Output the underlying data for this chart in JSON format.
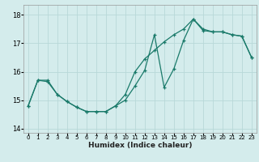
{
  "xlabel": "Humidex (Indice chaleur)",
  "bg_color": "#d4ecec",
  "grid_color": "#b8d8d8",
  "line_color": "#1a7a6a",
  "xlim": [
    -0.5,
    23.5
  ],
  "ylim": [
    13.85,
    18.35
  ],
  "yticks": [
    14,
    15,
    16,
    17,
    18
  ],
  "xticks": [
    0,
    1,
    2,
    3,
    4,
    5,
    6,
    7,
    8,
    9,
    10,
    11,
    12,
    13,
    14,
    15,
    16,
    17,
    18,
    19,
    20,
    21,
    22,
    23
  ],
  "line1_x": [
    0,
    1,
    2,
    3,
    4,
    5,
    6,
    7,
    8,
    9,
    10,
    11,
    12,
    13,
    14,
    15,
    16,
    17,
    18,
    19,
    20,
    21,
    22,
    23
  ],
  "line1_y": [
    14.8,
    15.7,
    15.7,
    15.2,
    14.95,
    14.75,
    14.6,
    14.6,
    14.6,
    14.8,
    15.0,
    15.5,
    16.05,
    17.3,
    15.45,
    16.1,
    17.1,
    17.85,
    17.5,
    17.4,
    17.4,
    17.3,
    17.25,
    16.5
  ],
  "line2_x": [
    0,
    1,
    2,
    3,
    4,
    5,
    6,
    7,
    8,
    9,
    10,
    11,
    12,
    13,
    14,
    15,
    16,
    17,
    18,
    19,
    20,
    21,
    22,
    23
  ],
  "line2_y": [
    14.8,
    15.7,
    15.65,
    15.2,
    14.95,
    14.75,
    14.6,
    14.6,
    14.6,
    14.8,
    15.2,
    16.0,
    16.45,
    16.75,
    17.05,
    17.3,
    17.5,
    17.85,
    17.45,
    17.4,
    17.4,
    17.3,
    17.25,
    16.5
  ]
}
